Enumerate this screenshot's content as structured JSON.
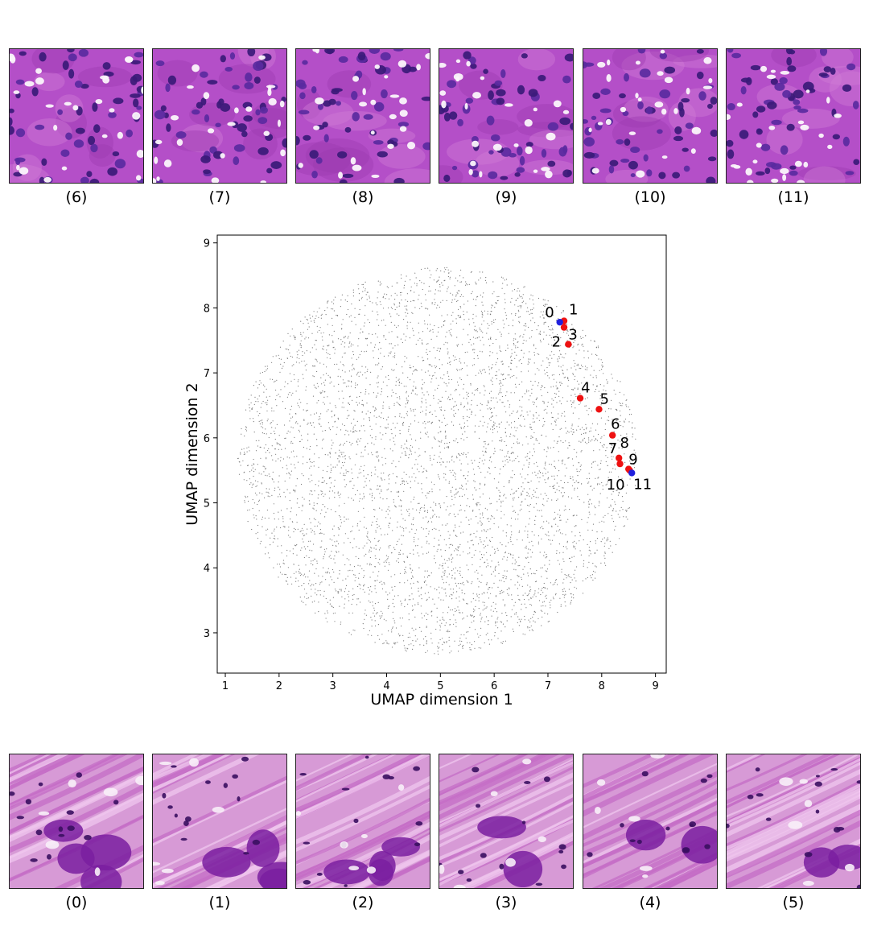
{
  "top_row": [
    {
      "caption": "(6)",
      "palette": "cellular"
    },
    {
      "caption": "(7)",
      "palette": "cellular"
    },
    {
      "caption": "(8)",
      "palette": "cellular"
    },
    {
      "caption": "(9)",
      "palette": "cellular"
    },
    {
      "caption": "(10)",
      "palette": "cellular"
    },
    {
      "caption": "(11)",
      "palette": "cellular"
    }
  ],
  "bottom_row": [
    {
      "caption": "(0)",
      "palette": "stromal"
    },
    {
      "caption": "(1)",
      "palette": "stromal"
    },
    {
      "caption": "(2)",
      "palette": "stromal"
    },
    {
      "caption": "(3)",
      "palette": "stromal"
    },
    {
      "caption": "(4)",
      "palette": "stromal"
    },
    {
      "caption": "(5)",
      "palette": "stromal"
    }
  ],
  "colors": {
    "background_points": "#7a7a7a",
    "endpoint": "#2020dd",
    "intermediate": "#ee1111",
    "tile_cellular_bg": "#b44fc8",
    "tile_stromal_bg": "#d79ad6"
  },
  "chart_data": {
    "type": "scatter",
    "title": "",
    "xlabel": "UMAP dimension 1",
    "ylabel": "UMAP dimension 2",
    "xlim": [
      0.85,
      9.2
    ],
    "ylim": [
      2.38,
      9.12
    ],
    "xticks": [
      1,
      2,
      3,
      4,
      5,
      6,
      7,
      8,
      9
    ],
    "yticks": [
      3,
      4,
      5,
      6,
      7,
      8,
      9
    ],
    "grid": false,
    "legend": "none",
    "background_cloud": {
      "shape": "disk",
      "center": [
        4.95,
        5.65
      ],
      "radius_x": 3.72,
      "radius_y": 2.98,
      "approx_points": 5000
    },
    "highlighted_points": [
      {
        "label": "0",
        "x": 7.22,
        "y": 7.78,
        "role": "endpoint"
      },
      {
        "label": "1",
        "x": 7.3,
        "y": 7.8,
        "role": "intermediate"
      },
      {
        "label": "2",
        "x": 7.3,
        "y": 7.7,
        "role": "intermediate"
      },
      {
        "label": "3",
        "x": 7.38,
        "y": 7.44,
        "role": "intermediate"
      },
      {
        "label": "4",
        "x": 7.6,
        "y": 6.61,
        "role": "intermediate"
      },
      {
        "label": "5",
        "x": 7.95,
        "y": 6.44,
        "role": "intermediate"
      },
      {
        "label": "6",
        "x": 8.2,
        "y": 6.04,
        "role": "intermediate"
      },
      {
        "label": "7",
        "x": 8.32,
        "y": 5.69,
        "role": "intermediate"
      },
      {
        "label": "8",
        "x": 8.34,
        "y": 5.6,
        "role": "intermediate"
      },
      {
        "label": "9",
        "x": 8.5,
        "y": 5.52,
        "role": "intermediate"
      },
      {
        "label": "10",
        "x": 8.52,
        "y": 5.5,
        "role": "intermediate"
      },
      {
        "label": "11",
        "x": 8.56,
        "y": 5.46,
        "role": "endpoint"
      }
    ]
  }
}
